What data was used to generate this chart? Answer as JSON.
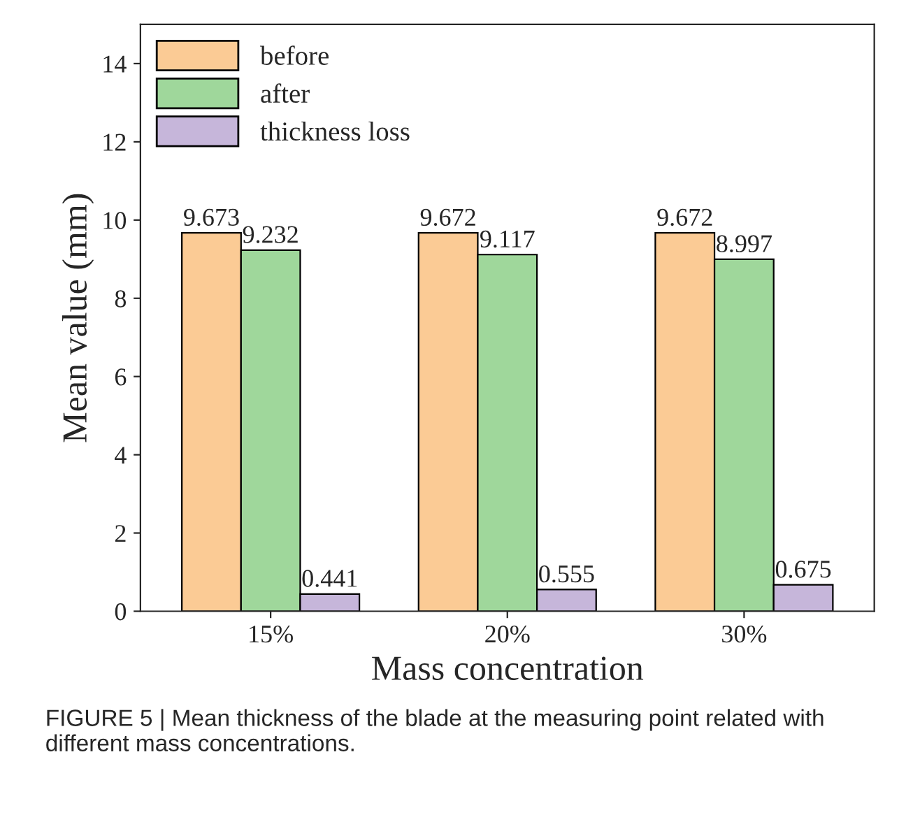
{
  "chart_data": {
    "type": "bar",
    "xlabel": "Mass concentration",
    "ylabel": "Mean value (mm)",
    "categories": [
      "15%",
      "20%",
      "30%"
    ],
    "series": [
      {
        "name": "before",
        "color": "#fbcb95",
        "values": [
          9.673,
          9.672,
          9.672
        ]
      },
      {
        "name": "after",
        "color": "#9fd79b",
        "values": [
          9.232,
          9.117,
          8.997
        ]
      },
      {
        "name": "thickness loss",
        "color": "#c6b6da",
        "values": [
          0.441,
          0.555,
          0.675
        ]
      }
    ],
    "ylim": [
      0,
      15
    ],
    "yticks": [
      0,
      2,
      4,
      6,
      8,
      10,
      12,
      14
    ],
    "data_labels": true,
    "legend": "top left",
    "grid": false,
    "annotations": [
      "FIGURE 5 | Mean thickness of the blade at the measuring point related with different mass concentrations."
    ]
  }
}
